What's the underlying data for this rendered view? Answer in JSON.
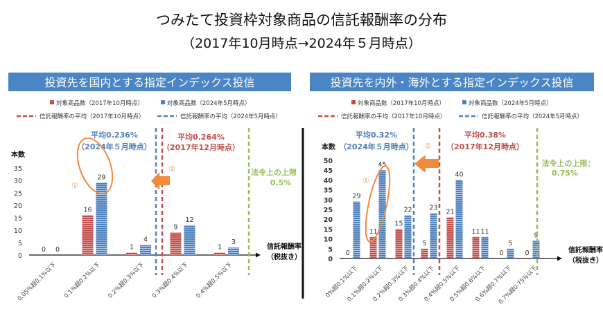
{
  "title": "つみたて投資枠対象商品の信託報酬率の分布",
  "subtitle": "（2017年10月時点→2024年５月時点）",
  "colors": {
    "red": "#c0504d",
    "blue": "#4f81bd",
    "green": "#9bbb59",
    "orange": "#f08a3c",
    "header": "#4a86c5"
  },
  "chart_data": [
    {
      "type": "bar",
      "title": "投資先を国内とする指定インデックス投信",
      "legend": [
        "対象商品数（2017年10月時点）",
        "対象商品数（2024年5月時点）",
        "信託報酬率の平均（2017年10月時点）",
        "信託報酬率の平均（2024年5月時点）"
      ],
      "ylabel": "本数",
      "xlabel": [
        "信託報酬率",
        "（税抜き）"
      ],
      "ylim": [
        0,
        35
      ],
      "yticks": [
        0,
        5,
        10,
        15,
        20,
        25,
        30,
        35
      ],
      "categories": [
        "0.05%超0.1%以下",
        "0.1%超0.2%以下",
        "0.2%超0.3%以下",
        "0.3%超0.4%以下",
        "0.4%超0.5%以下"
      ],
      "series": [
        {
          "name": "対象商品数（2017年10月時点）",
          "values": [
            0,
            16,
            1,
            9,
            1
          ]
        },
        {
          "name": "対象商品数（2024年5月時点）",
          "values": [
            0,
            29,
            4,
            12,
            3
          ]
        }
      ],
      "annotations": {
        "avg_new": [
          "平均0.236%",
          "（2024年５月時点）"
        ],
        "avg_old": [
          "平均0.264%",
          "（2017年12月時点）"
        ],
        "limit": [
          "法令上の上限",
          "0.5%"
        ],
        "mark1": "①",
        "mark2": "②"
      }
    },
    {
      "type": "bar",
      "title": "投資先を内外・海外とする指定インデックス投信",
      "legend": [
        "対象商品数（2017年10月時点）",
        "対象商品数（2024年5月時点）",
        "信託報酬率の平均（2017年10月時点）",
        "信託報酬率の平均（2024年5月時点）"
      ],
      "ylabel": "本数",
      "xlabel": [
        "信託報酬率",
        "（税抜き）"
      ],
      "ylim": [
        0,
        50
      ],
      "yticks": [
        0,
        5,
        10,
        15,
        20,
        25,
        30,
        35,
        40,
        45,
        50
      ],
      "categories": [
        "0%超0.1%以下",
        "0.1%超0.2%以下",
        "0.2%超0.3%以下",
        "0.3%超0.4%以下",
        "0.4%超0.5%以下",
        "0.5%超0.6%以下",
        "0.6%超0.7%以下",
        "0.7%超0.75%以下"
      ],
      "series": [
        {
          "name": "対象商品数（2017年10月時点）",
          "values": [
            0,
            11,
            15,
            5,
            21,
            11,
            0,
            0
          ]
        },
        {
          "name": "対象商品数（2024年5月時点）",
          "values": [
            29,
            45,
            22,
            23,
            40,
            11,
            5,
            9
          ]
        }
      ],
      "annotations": {
        "avg_new": [
          "平均0.32%",
          "（2024年５月時点）"
        ],
        "avg_old": [
          "平均0.38%",
          "（2017年12月時点）"
        ],
        "limit": [
          "法令上の上限：",
          "0.75%"
        ],
        "mark1": "①",
        "mark2": "②"
      }
    }
  ]
}
